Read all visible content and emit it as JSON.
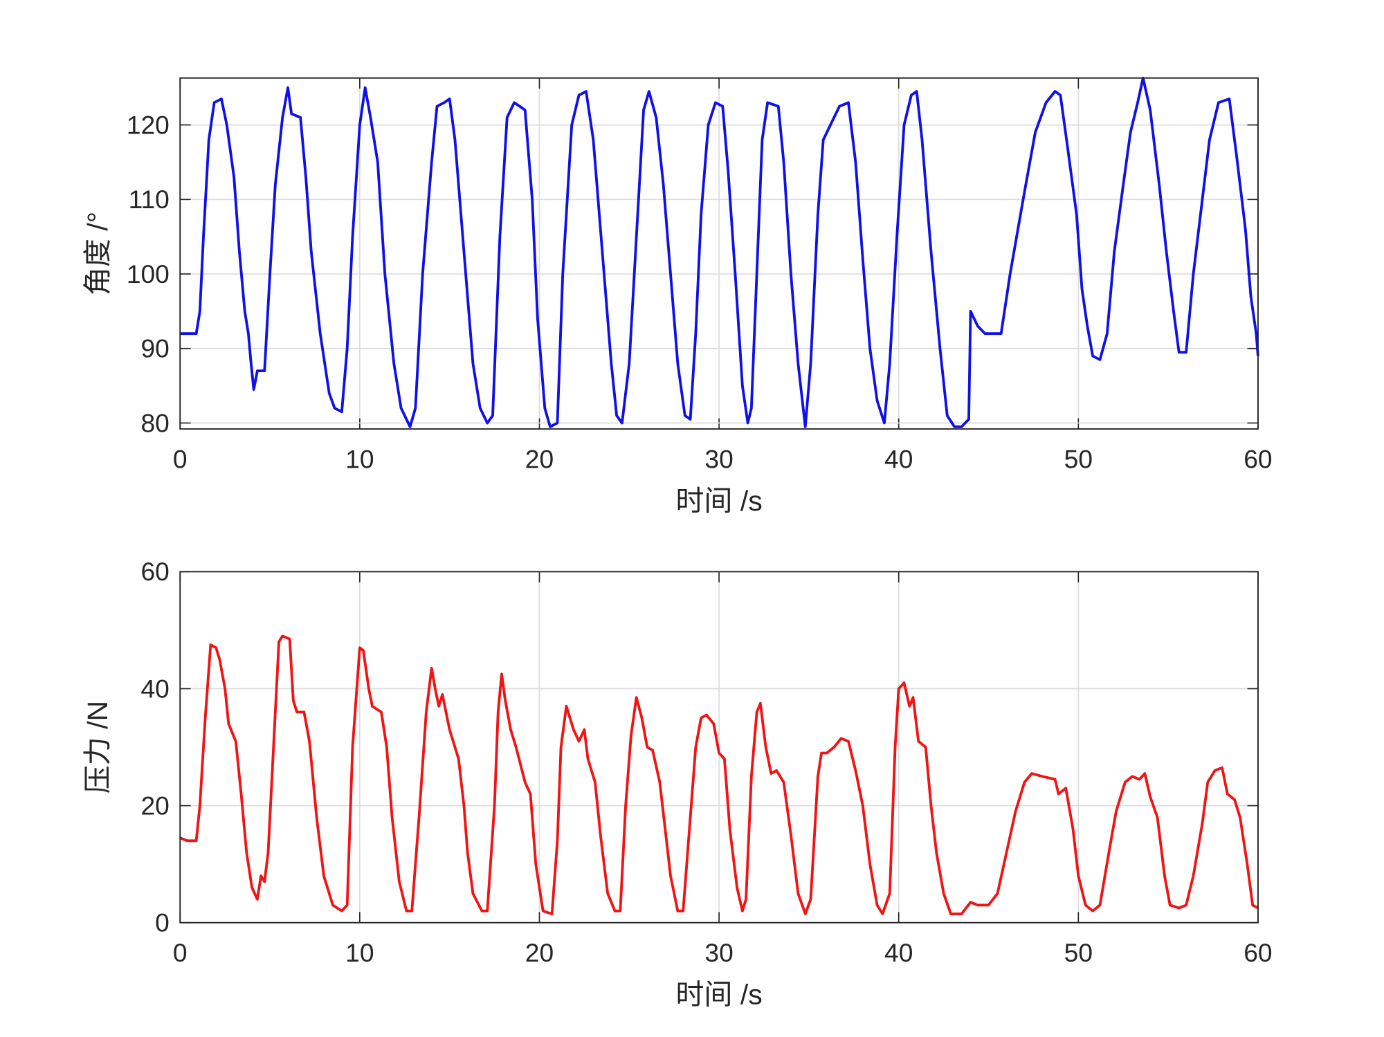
{
  "chart_data": [
    {
      "type": "line",
      "xlabel": "时间 /s",
      "ylabel": "角度 /°",
      "color": "#1010e8",
      "grid": true,
      "xlim": [
        0,
        60
      ],
      "xticks": [
        0,
        10,
        20,
        30,
        40,
        50,
        60
      ],
      "ylim": [
        79.2,
        126.3
      ],
      "yticks": [
        80,
        90,
        100,
        110,
        120
      ],
      "x": [
        0,
        0.9,
        1.1,
        1.3,
        1.6,
        1.9,
        2.3,
        2.6,
        3.0,
        3.3,
        3.6,
        3.8,
        3.95,
        4.1,
        4.3,
        4.7,
        5.0,
        5.3,
        5.7,
        6.0,
        6.2,
        6.7,
        7.0,
        7.3,
        7.8,
        8.3,
        8.6,
        9.0,
        9.3,
        9.6,
        10.0,
        10.3,
        10.6,
        11.0,
        11.4,
        11.9,
        12.3,
        12.8,
        13.1,
        13.5,
        14.0,
        14.3,
        14.7,
        15.0,
        15.3,
        15.8,
        16.3,
        16.7,
        17.1,
        17.4,
        17.8,
        18.2,
        18.6,
        19.2,
        19.6,
        19.9,
        20.3,
        20.6,
        21.0,
        21.3,
        21.8,
        22.2,
        22.6,
        23.0,
        23.5,
        24.0,
        24.3,
        24.6,
        25.0,
        25.4,
        25.8,
        26.1,
        26.5,
        26.9,
        27.3,
        27.7,
        28.1,
        28.4,
        28.7,
        29.0,
        29.4,
        29.8,
        30.2,
        30.5,
        30.9,
        31.3,
        31.6,
        31.8,
        32.1,
        32.4,
        32.7,
        33.3,
        33.6,
        34.0,
        34.4,
        34.8,
        35.1,
        35.5,
        35.8,
        36.3,
        36.7,
        37.2,
        37.6,
        38.0,
        38.4,
        38.8,
        39.2,
        39.5,
        39.9,
        40.3,
        40.7,
        41.0,
        41.3,
        41.8,
        42.3,
        42.7,
        43.1,
        43.5,
        43.9,
        44.0,
        44.4,
        44.8,
        45.7,
        46.2,
        47.0,
        47.6,
        48.2,
        48.7,
        49.0,
        49.4,
        49.9,
        50.2,
        50.5,
        50.8,
        51.2,
        51.6,
        52.0,
        52.5,
        52.9,
        53.3,
        53.6,
        54.0,
        54.5,
        54.9,
        55.3,
        55.6,
        56.0,
        56.4,
        56.9,
        57.3,
        57.8,
        58.4,
        58.8,
        59.3,
        59.6,
        59.9,
        60
      ],
      "values": [
        92,
        92,
        95,
        105,
        118,
        123,
        123.5,
        120,
        113,
        103,
        95,
        92,
        88,
        84.5,
        87,
        87,
        100,
        112,
        121,
        125,
        121.5,
        121,
        113,
        103,
        92,
        84,
        82,
        81.5,
        90,
        105,
        120,
        125,
        121,
        115,
        100,
        88,
        82,
        79.5,
        82,
        100,
        115,
        122.5,
        123,
        123.5,
        118,
        103,
        88,
        82,
        80,
        81,
        105,
        121,
        123,
        122,
        110,
        94,
        82,
        79.5,
        80,
        100,
        120,
        124,
        124.5,
        118,
        103,
        88,
        81,
        80,
        88,
        105,
        122,
        124.5,
        121,
        112,
        100,
        88,
        81,
        80.5,
        92,
        108,
        120,
        123,
        122.5,
        114,
        100,
        85,
        80,
        82,
        100,
        118,
        123,
        122.5,
        115,
        100,
        88,
        79.5,
        88,
        108,
        118,
        120.5,
        122.5,
        123,
        115,
        102,
        90,
        83,
        80,
        88,
        105,
        120,
        124,
        124.5,
        118,
        103,
        90,
        81,
        79.5,
        79.5,
        80.5,
        95,
        93,
        92,
        92,
        100,
        111,
        119,
        123,
        124.5,
        124,
        117,
        108,
        98,
        93,
        89,
        88.5,
        92,
        103,
        112,
        119,
        123,
        126.3,
        122,
        112,
        103,
        95,
        89.5,
        89.5,
        100,
        110,
        118,
        123,
        123.5,
        116,
        106,
        97,
        92,
        89
      ]
    },
    {
      "type": "line",
      "xlabel": "时间 /s",
      "ylabel": "压力 /N",
      "color": "#f01414",
      "grid": true,
      "xlim": [
        0,
        60
      ],
      "xticks": [
        0,
        10,
        20,
        30,
        40,
        50,
        60
      ],
      "ylim": [
        0,
        60
      ],
      "yticks": [
        0,
        20,
        40,
        60
      ],
      "x": [
        0,
        0.4,
        0.9,
        1.1,
        1.4,
        1.7,
        2.0,
        2.2,
        2.5,
        2.7,
        3.1,
        3.4,
        3.7,
        4.0,
        4.3,
        4.5,
        4.7,
        4.9,
        5.2,
        5.5,
        5.7,
        6.1,
        6.3,
        6.5,
        6.9,
        7.2,
        7.6,
        8.0,
        8.5,
        9.0,
        9.3,
        9.6,
        10.0,
        10.2,
        10.5,
        10.7,
        11.2,
        11.5,
        11.8,
        12.2,
        12.6,
        12.9,
        13.3,
        13.7,
        14.0,
        14.2,
        14.4,
        14.6,
        15.0,
        15.5,
        15.8,
        16.0,
        16.3,
        16.8,
        17.1,
        17.5,
        17.7,
        17.9,
        18.1,
        18.4,
        18.7,
        19.2,
        19.5,
        19.8,
        20.2,
        20.7,
        21.0,
        21.2,
        21.5,
        21.9,
        22.2,
        22.5,
        22.7,
        23.1,
        23.4,
        23.8,
        24.2,
        24.5,
        24.8,
        25.1,
        25.4,
        25.7,
        26.0,
        26.3,
        26.7,
        27.0,
        27.3,
        27.7,
        28.0,
        28.3,
        28.7,
        29.0,
        29.3,
        29.7,
        30.0,
        30.3,
        30.6,
        31.0,
        31.3,
        31.5,
        31.8,
        32.1,
        32.3,
        32.6,
        32.9,
        33.2,
        33.6,
        34.0,
        34.4,
        34.8,
        35.1,
        35.5,
        35.7,
        36.0,
        36.4,
        36.8,
        37.2,
        37.6,
        38.0,
        38.4,
        38.8,
        39.1,
        39.5,
        39.8,
        40.0,
        40.3,
        40.6,
        40.8,
        41.1,
        41.5,
        41.8,
        42.1,
        42.5,
        42.9,
        43.5,
        44.0,
        44.4,
        45.0,
        45.5,
        46.0,
        46.5,
        47.0,
        47.4,
        48.0,
        48.7,
        48.9,
        49.3,
        49.7,
        50.0,
        50.4,
        50.8,
        51.2,
        51.7,
        52.1,
        52.6,
        53.0,
        53.4,
        53.7,
        54.0,
        54.4,
        54.8,
        55.1,
        55.6,
        56.0,
        56.4,
        56.9,
        57.2,
        57.6,
        58.0,
        58.3,
        58.7,
        59.0,
        59.4,
        59.7,
        60
      ],
      "values": [
        14.5,
        14,
        14,
        20,
        35,
        47.5,
        47,
        45,
        40,
        34,
        31,
        22,
        12,
        6,
        4,
        8,
        7,
        12,
        30,
        48,
        49,
        48.5,
        38,
        36,
        36,
        31,
        18,
        8,
        3,
        2,
        3,
        30,
        47,
        46.5,
        40,
        37,
        36,
        30,
        18,
        7,
        2,
        2,
        18,
        36,
        43.5,
        40,
        37,
        39,
        33,
        28,
        20,
        12,
        5,
        2,
        2,
        20,
        36,
        42.5,
        38,
        33,
        30,
        24,
        22,
        10,
        2,
        1.5,
        14,
        30,
        37,
        33,
        31,
        33,
        28,
        24,
        15,
        5,
        2,
        2,
        20,
        32,
        38.5,
        35,
        30,
        29.5,
        24,
        16,
        8,
        2,
        2,
        14,
        30,
        35,
        35.5,
        34,
        29,
        28,
        16,
        6,
        2,
        4,
        25,
        36,
        37.5,
        30,
        25.5,
        26,
        24,
        15,
        5,
        1.5,
        4,
        25,
        29,
        29,
        30,
        31.5,
        31,
        26,
        20,
        10,
        3,
        1.5,
        5,
        30,
        40,
        41,
        37,
        38.5,
        31,
        30,
        20,
        12,
        5,
        1.5,
        1.5,
        3.5,
        3,
        3,
        5,
        12,
        19,
        24,
        25.5,
        25,
        24.5,
        22,
        23,
        16,
        8,
        3,
        2,
        3,
        12,
        19,
        24,
        25,
        24.5,
        25.5,
        21.5,
        18,
        8,
        3,
        2.5,
        3,
        8,
        17,
        24,
        26,
        26.5,
        22,
        21,
        18,
        10,
        3,
        2.5
      ]
    }
  ]
}
